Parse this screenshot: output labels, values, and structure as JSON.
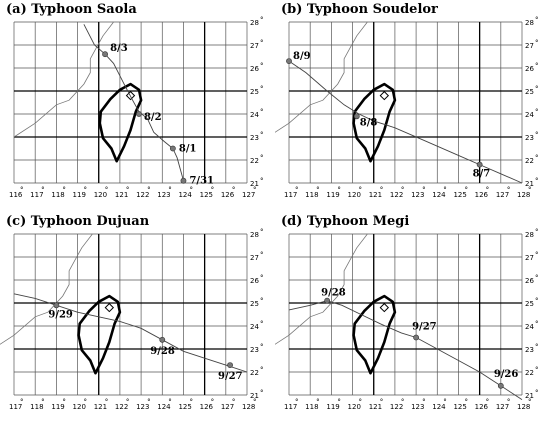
{
  "panels": [
    {
      "title": "(a) Typhoon Saola",
      "lon_ticks": [
        "116",
        "117",
        "118",
        "119",
        "120",
        "121",
        "122",
        "123",
        "124",
        "125",
        "126",
        "127"
      ],
      "lat_ticks": [
        "28",
        "27",
        "26",
        "25",
        "24",
        "23",
        "22",
        "21"
      ],
      "track": [
        [
          119.3,
          27.9
        ],
        [
          119.8,
          27.0
        ],
        [
          120.3,
          26.6
        ],
        [
          120.7,
          26.2
        ],
        [
          121.2,
          25.3
        ],
        [
          121.6,
          24.6
        ],
        [
          121.9,
          24.1
        ],
        [
          122.3,
          23.8
        ],
        [
          122.6,
          23.2
        ],
        [
          123.1,
          22.8
        ],
        [
          123.5,
          22.5
        ],
        [
          123.7,
          22.1
        ],
        [
          124.0,
          21.1
        ]
      ],
      "points": [
        {
          "label": "8/3",
          "lon": 120.3,
          "lat": 26.6,
          "dx": 5,
          "dy": -3
        },
        {
          "label": "8/2",
          "lon": 121.9,
          "lat": 24.0,
          "dx": 5,
          "dy": 6
        },
        {
          "label": "8/1",
          "lon": 123.5,
          "lat": 22.5,
          "dx": 6,
          "dy": 3
        },
        {
          "label": "7/31",
          "lon": 124.0,
          "lat": 21.1,
          "dx": 6,
          "dy": 3
        }
      ],
      "ylon": [
        120,
        125
      ],
      "ylat": [
        23,
        25
      ]
    },
    {
      "title": "(b) Typhoon Soudelor",
      "lon_ticks": [
        "117",
        "118",
        "119",
        "120",
        "121",
        "122",
        "123",
        "124",
        "125",
        "126",
        "127",
        "128"
      ],
      "lat_ticks": [
        "28",
        "27",
        "26",
        "25",
        "24",
        "23",
        "22",
        "21"
      ],
      "track": [
        [
          117.0,
          26.3
        ],
        [
          117.8,
          25.8
        ],
        [
          118.8,
          25.0
        ],
        [
          119.6,
          24.4
        ],
        [
          120.3,
          24.0
        ],
        [
          121.0,
          23.7
        ],
        [
          122.0,
          23.4
        ],
        [
          123.5,
          22.8
        ],
        [
          125.0,
          22.2
        ],
        [
          126.0,
          21.8
        ],
        [
          127.0,
          21.4
        ],
        [
          128.0,
          21.0
        ]
      ],
      "points": [
        {
          "label": "8/9",
          "lon": 117.0,
          "lat": 26.3,
          "dx": 4,
          "dy": -2
        },
        {
          "label": "8/8",
          "lon": 120.2,
          "lat": 23.9,
          "dx": 3,
          "dy": 9
        },
        {
          "label": "8/7",
          "lon": 126.0,
          "lat": 21.8,
          "dx": -7,
          "dy": 12
        }
      ],
      "ylon": [
        121,
        126
      ],
      "ylat": [
        23,
        25
      ]
    },
    {
      "title": "(c) Typhoon Dujuan",
      "lon_ticks": [
        "117",
        "118",
        "119",
        "120",
        "121",
        "122",
        "123",
        "124",
        "125",
        "126",
        "127",
        "128"
      ],
      "lat_ticks": [
        "28",
        "27",
        "26",
        "25",
        "24",
        "23",
        "22",
        "21"
      ],
      "track": [
        [
          117.0,
          25.4
        ],
        [
          118.0,
          25.2
        ],
        [
          119.0,
          24.9
        ],
        [
          120.0,
          24.6
        ],
        [
          121.0,
          24.4
        ],
        [
          122.0,
          24.2
        ],
        [
          123.0,
          23.9
        ],
        [
          124.0,
          23.4
        ],
        [
          125.0,
          22.9
        ],
        [
          126.0,
          22.6
        ],
        [
          127.0,
          22.3
        ],
        [
          128.0,
          22.0
        ]
      ],
      "points": [
        {
          "label": "9/29",
          "lon": 119.0,
          "lat": 24.9,
          "dx": -8,
          "dy": 12
        },
        {
          "label": "9/28",
          "lon": 124.0,
          "lat": 23.4,
          "dx": -12,
          "dy": 14
        },
        {
          "label": "9/27",
          "lon": 127.2,
          "lat": 22.3,
          "dx": -12,
          "dy": 14
        }
      ],
      "ylon": [
        121,
        126
      ],
      "ylat": [
        23,
        25
      ]
    },
    {
      "title": "(d) Typhoon Megi",
      "lon_ticks": [
        "117",
        "118",
        "119",
        "120",
        "121",
        "122",
        "123",
        "124",
        "125",
        "126",
        "127",
        "128"
      ],
      "lat_ticks": [
        "28",
        "27",
        "26",
        "25",
        "24",
        "23",
        "22",
        "21"
      ],
      "track": [
        [
          117.0,
          24.7
        ],
        [
          118.0,
          24.9
        ],
        [
          118.8,
          25.1
        ],
        [
          119.5,
          24.9
        ],
        [
          120.4,
          24.5
        ],
        [
          121.3,
          24.1
        ],
        [
          122.3,
          23.7
        ],
        [
          123.0,
          23.5
        ],
        [
          124.0,
          23.0
        ],
        [
          125.0,
          22.5
        ],
        [
          126.0,
          22.0
        ],
        [
          127.0,
          21.4
        ],
        [
          128.0,
          20.8
        ]
      ],
      "points": [
        {
          "label": "9/28",
          "lon": 118.8,
          "lat": 25.1,
          "dx": -6,
          "dy": -5
        },
        {
          "label": "9/27",
          "lon": 123.0,
          "lat": 23.5,
          "dx": -4,
          "dy": -8
        },
        {
          "label": "9/26",
          "lon": 127.0,
          "lat": 21.4,
          "dx": -7,
          "dy": -9
        }
      ],
      "ylon": [
        121,
        126
      ],
      "ylat": [
        23,
        25
      ]
    }
  ]
}
